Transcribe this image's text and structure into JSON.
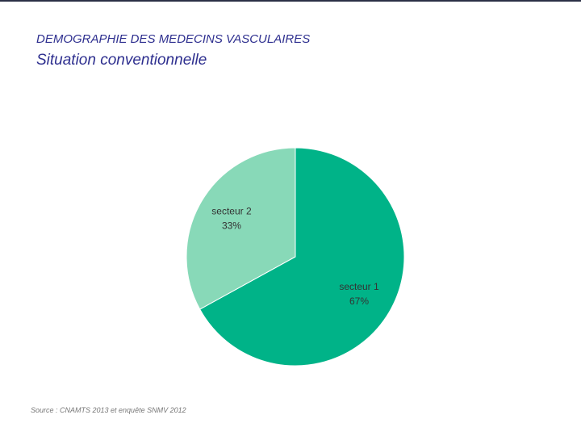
{
  "chart_data": {
    "type": "pie",
    "title": "DEMOGRAPHIE DES MEDECINS VASCULAIRES",
    "subtitle": "Situation conventionnelle",
    "categories": [
      "secteur 1",
      "secteur 2"
    ],
    "values": [
      67,
      33
    ],
    "value_labels": [
      "67%",
      "33%"
    ],
    "colors": [
      "#00b388",
      "#88d9b8"
    ],
    "source": "Source : CNAMTS 2013 et enquête SNMV 2012"
  }
}
